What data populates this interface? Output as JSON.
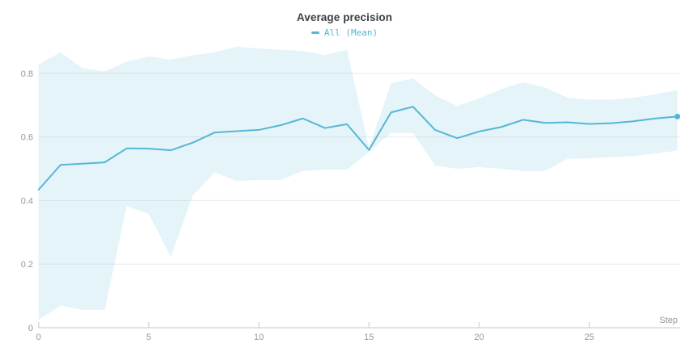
{
  "chart_data": {
    "type": "line",
    "title": "Average precision",
    "legend_label": "All (Mean)",
    "legend_position": "top-center",
    "xlabel": "Step",
    "ylabel": "",
    "grid": "horizontal",
    "xlim": [
      0,
      29.2
    ],
    "ylim": [
      0,
      0.92
    ],
    "xtick_values": [
      0,
      5,
      10,
      15,
      20,
      25
    ],
    "xtick_labels": [
      "0",
      "5",
      "10",
      "15",
      "20",
      "25"
    ],
    "ytick_values": [
      0,
      0.2,
      0.4,
      0.6,
      0.8
    ],
    "ytick_labels": [
      "0",
      "0.2",
      "0.4",
      "0.6",
      "0.8"
    ],
    "x": [
      0,
      1,
      2,
      3,
      4,
      5,
      6,
      7,
      8,
      9,
      10,
      11,
      12,
      13,
      14,
      15,
      16,
      17,
      18,
      19,
      20,
      21,
      22,
      23,
      24,
      25,
      26,
      27,
      28,
      29
    ],
    "series": [
      {
        "name": "All (Mean)",
        "color": "#55b7d6",
        "band_color": "rgba(86,184,213,0.16)",
        "end_marker": true,
        "values": [
          0.434,
          0.512,
          0.516,
          0.52,
          0.564,
          0.563,
          0.558,
          0.582,
          0.614,
          0.618,
          0.622,
          0.637,
          0.658,
          0.628,
          0.64,
          0.559,
          0.677,
          0.695,
          0.622,
          0.596,
          0.617,
          0.631,
          0.654,
          0.644,
          0.646,
          0.641,
          0.643,
          0.649,
          0.658,
          0.664
        ],
        "band_upper": [
          0.828,
          0.866,
          0.816,
          0.806,
          0.836,
          0.853,
          0.843,
          0.857,
          0.866,
          0.884,
          0.878,
          0.874,
          0.87,
          0.857,
          0.874,
          0.565,
          0.769,
          0.784,
          0.731,
          0.697,
          0.721,
          0.75,
          0.772,
          0.755,
          0.724,
          0.717,
          0.717,
          0.723,
          0.734,
          0.747
        ],
        "band_lower": [
          0.025,
          0.07,
          0.056,
          0.056,
          0.383,
          0.358,
          0.223,
          0.416,
          0.489,
          0.461,
          0.465,
          0.465,
          0.493,
          0.497,
          0.497,
          0.553,
          0.613,
          0.612,
          0.51,
          0.5,
          0.505,
          0.5,
          0.492,
          0.493,
          0.531,
          0.533,
          0.536,
          0.54,
          0.548,
          0.557
        ]
      }
    ],
    "colors": {
      "title_text": "#3c4043",
      "tick_text": "#969696",
      "gridline": "#ececec",
      "axis_line": "#dcdcdc",
      "tick_mark": "#d9d9d9",
      "background": "#ffffff"
    }
  }
}
